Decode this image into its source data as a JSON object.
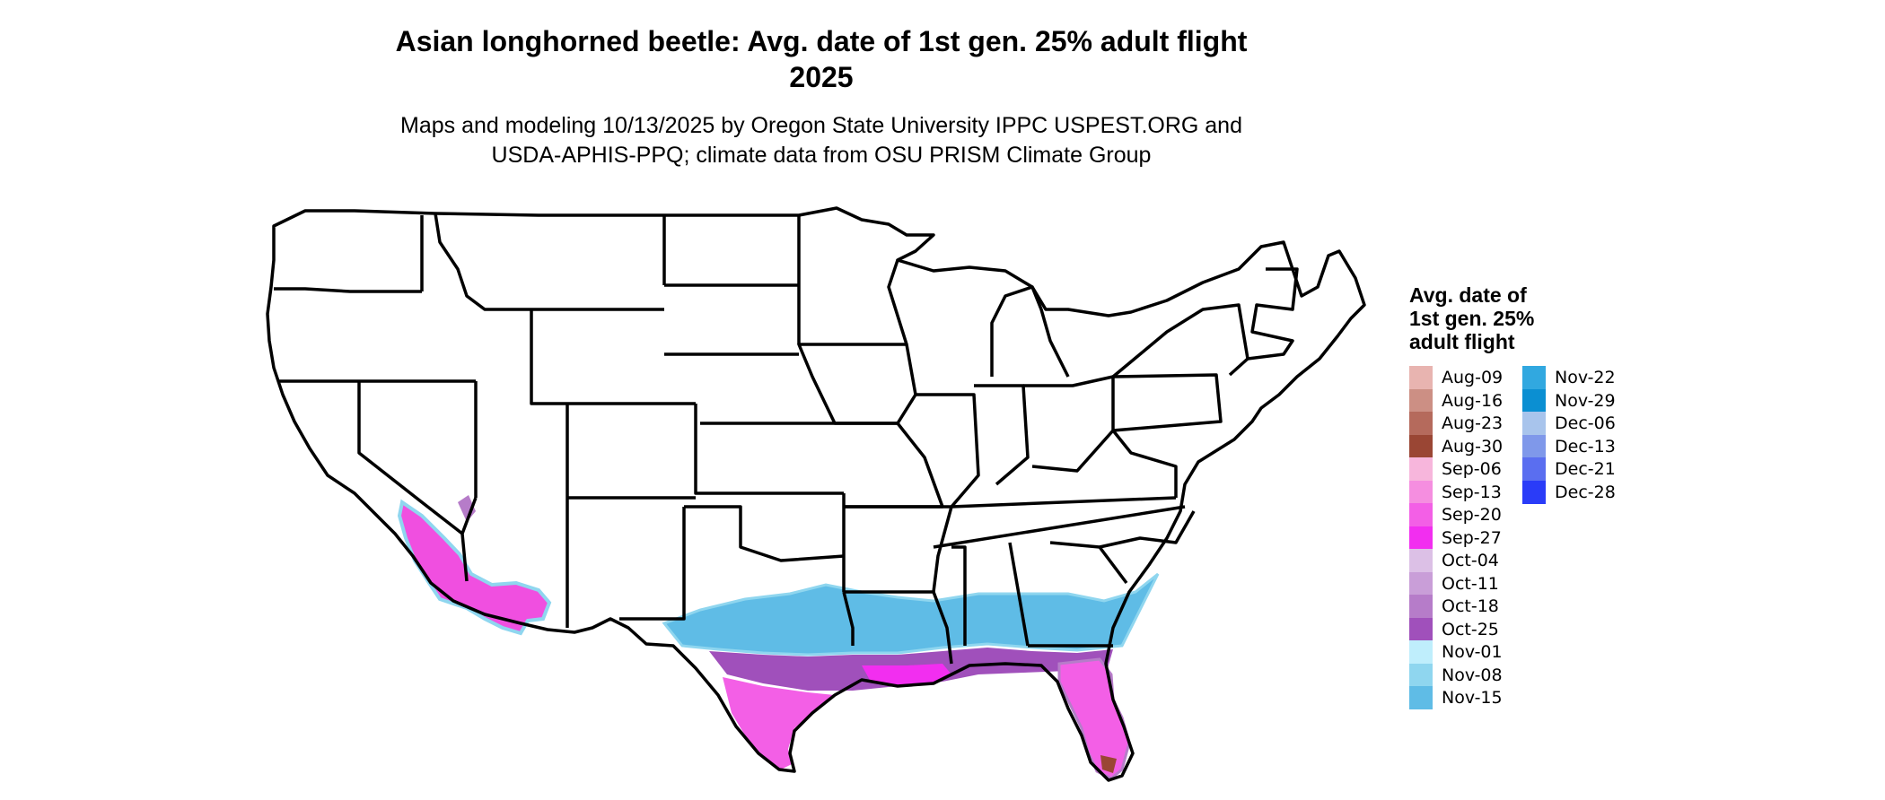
{
  "title": "Asian longhorned beetle: Avg. date of 1st gen. 25% adult flight",
  "title_year": "2025",
  "subtitle_line1": "Maps and modeling 10/13/2025 by Oregon State University IPPC USPEST.ORG and",
  "subtitle_line2": "USDA-APHIS-PPQ; climate data from OSU PRISM Climate Group",
  "legend": {
    "title_lines": [
      "Avg. date of",
      "1st gen. 25%",
      "adult flight"
    ],
    "items": [
      {
        "label": "Aug-09",
        "color": "#e8b4b0"
      },
      {
        "label": "Aug-16",
        "color": "#cc8f84"
      },
      {
        "label": "Aug-23",
        "color": "#b56a5c"
      },
      {
        "label": "Aug-30",
        "color": "#9a4634"
      },
      {
        "label": "Sep-06",
        "color": "#f7b6dc"
      },
      {
        "label": "Sep-13",
        "color": "#f58ee0"
      },
      {
        "label": "Sep-20",
        "color": "#f35fe6"
      },
      {
        "label": "Sep-27",
        "color": "#f22ef0"
      },
      {
        "label": "Oct-04",
        "color": "#dcc0e6"
      },
      {
        "label": "Oct-11",
        "color": "#c99ed8"
      },
      {
        "label": "Oct-18",
        "color": "#b67cc9"
      },
      {
        "label": "Oct-25",
        "color": "#a050bb"
      },
      {
        "label": "Nov-01",
        "color": "#bfeefc"
      },
      {
        "label": "Nov-08",
        "color": "#8fd6ef"
      },
      {
        "label": "Nov-15",
        "color": "#5fbce6"
      },
      {
        "label": "Nov-22",
        "color": "#31a8e0"
      },
      {
        "label": "Nov-29",
        "color": "#0b8fd2"
      },
      {
        "label": "Dec-06",
        "color": "#a8c4ec"
      },
      {
        "label": "Dec-13",
        "color": "#7f98ea"
      },
      {
        "label": "Dec-21",
        "color": "#5a6ef0"
      },
      {
        "label": "Dec-28",
        "color": "#2a3cf8"
      }
    ]
  }
}
